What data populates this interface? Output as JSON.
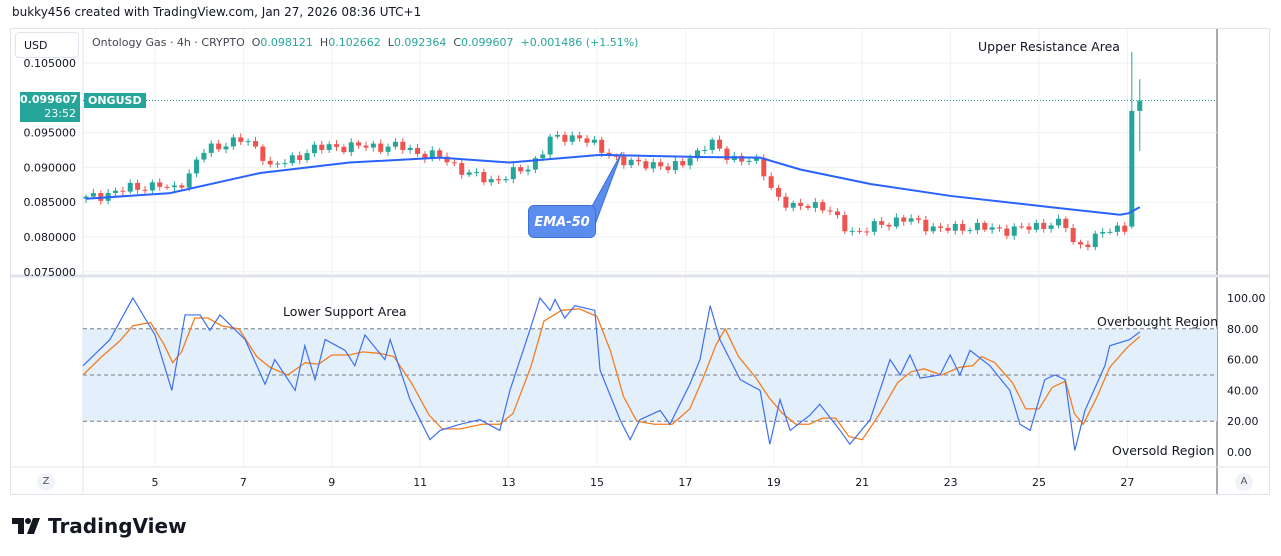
{
  "header": {
    "credit": "bukky456 created with TradingView.com, Jan 27, 2026 08:36 UTC+1"
  },
  "toolbar": {
    "currency": "USD"
  },
  "legend": {
    "symbol": "Ontology Gas · 4h · CRYPTO",
    "open_label": "O",
    "open": "0.098121",
    "high_label": "H",
    "high": "0.102662",
    "low_label": "L",
    "low": "0.092364",
    "close_label": "C",
    "close": "0.099607",
    "change": "+0.001486 (+1.51%)"
  },
  "price_tag": {
    "price": "0.099607",
    "countdown": "23:52",
    "symbol": "ONGUSD"
  },
  "annotations": {
    "upper": "Upper Resistance Area",
    "lower": "Lower Support Area",
    "overbought": "Overbought Region",
    "oversold": "Oversold Region",
    "ema": "EMA-50"
  },
  "buttons": {
    "left": "Z",
    "right": "A"
  },
  "brand": {
    "name": "TradingView"
  },
  "colors": {
    "up": "#26a69a",
    "down": "#ef5350",
    "ema": "#2962ff",
    "rsi": "#3d6ff0",
    "signal": "#f57c1f",
    "band": "#e3f0fc"
  },
  "chart_data": [
    {
      "type": "candlestick",
      "xlabel": "",
      "ylabel": "",
      "x_ticks": [
        "5",
        "7",
        "9",
        "11",
        "13",
        "15",
        "17",
        "19",
        "21",
        "23",
        "25",
        "27"
      ],
      "y_ticks": [
        "0.105000",
        "0.095000",
        "0.090000",
        "0.085000",
        "0.080000",
        "0.075000"
      ],
      "ylim": [
        0.0735,
        0.1075
      ],
      "grid": true,
      "close_path": [
        [
          3.44,
          0.0855
        ],
        [
          4.43,
          0.087
        ],
        [
          5.11,
          0.0875
        ],
        [
          5.34,
          0.0865
        ],
        [
          5.79,
          0.089
        ],
        [
          6.02,
          0.092
        ],
        [
          6.36,
          0.093
        ],
        [
          6.92,
          0.094
        ],
        [
          7.38,
          0.0925
        ],
        [
          7.6,
          0.09
        ],
        [
          8.05,
          0.091
        ],
        [
          8.5,
          0.0925
        ],
        [
          8.96,
          0.093
        ],
        [
          10.54,
          0.093
        ],
        [
          11.0,
          0.092
        ],
        [
          11.45,
          0.0915
        ],
        [
          12.13,
          0.089
        ],
        [
          12.58,
          0.088
        ],
        [
          13.03,
          0.089
        ],
        [
          13.48,
          0.09
        ],
        [
          13.94,
          0.094
        ],
        [
          14.62,
          0.0945
        ],
        [
          15.07,
          0.0925
        ],
        [
          15.41,
          0.0915
        ],
        [
          15.75,
          0.0905
        ],
        [
          16.43,
          0.0905
        ],
        [
          16.65,
          0.0895
        ],
        [
          17.1,
          0.0915
        ],
        [
          17.56,
          0.0935
        ],
        [
          18.0,
          0.0915
        ],
        [
          18.69,
          0.0905
        ],
        [
          19.03,
          0.086
        ],
        [
          19.37,
          0.084
        ],
        [
          19.82,
          0.085
        ],
        [
          20.27,
          0.0835
        ],
        [
          20.72,
          0.081
        ],
        [
          20.95,
          0.0805
        ],
        [
          21.4,
          0.082
        ],
        [
          22.08,
          0.0825
        ],
        [
          22.76,
          0.081
        ],
        [
          23.44,
          0.0815
        ],
        [
          24.12,
          0.081
        ],
        [
          24.8,
          0.0813
        ],
        [
          25.25,
          0.082
        ],
        [
          25.59,
          0.0818
        ],
        [
          25.81,
          0.0785
        ],
        [
          26.15,
          0.0795
        ],
        [
          26.6,
          0.081
        ],
        [
          26.99,
          0.0815
        ]
      ],
      "last_candles": [
        {
          "o": 0.0815,
          "h": 0.1066,
          "l": 0.0812,
          "c": 0.098121
        },
        {
          "o": 0.098121,
          "h": 0.102662,
          "l": 0.092364,
          "c": 0.099607
        }
      ],
      "ema50": {
        "name": "EMA-50",
        "values": [
          [
            3.44,
            0.0855
          ],
          [
            5.34,
            0.0863
          ],
          [
            7.38,
            0.0892
          ],
          [
            9.4,
            0.0907
          ],
          [
            11.45,
            0.0914
          ],
          [
            13.03,
            0.0907
          ],
          [
            15.07,
            0.0918
          ],
          [
            17.33,
            0.0915
          ],
          [
            18.69,
            0.0914
          ],
          [
            19.6,
            0.0897
          ],
          [
            21.2,
            0.0876
          ],
          [
            23.0,
            0.0859
          ],
          [
            25.25,
            0.0843
          ],
          [
            26.83,
            0.0832
          ],
          [
            27.02,
            0.0834
          ],
          [
            27.28,
            0.0843
          ]
        ]
      },
      "last_price": 0.099607
    },
    {
      "type": "line",
      "ylim": [
        0,
        100
      ],
      "y_ticks": [
        "100.00",
        "80.00",
        "60.00",
        "40.00",
        "20.00",
        "0.00"
      ],
      "levels": [
        80,
        50,
        20
      ],
      "series": [
        {
          "values": [
            [
              3.37,
              56
            ],
            [
              3.98,
              73
            ],
            [
              4.5,
              100
            ],
            [
              5.0,
              76
            ],
            [
              5.38,
              40
            ],
            [
              5.68,
              89
            ],
            [
              6.02,
              89
            ],
            [
              6.24,
              79
            ],
            [
              6.47,
              89
            ],
            [
              7.04,
              73
            ],
            [
              7.49,
              44
            ],
            [
              7.71,
              60
            ],
            [
              8.17,
              40
            ],
            [
              8.39,
              69
            ],
            [
              8.62,
              47
            ],
            [
              8.85,
              73
            ],
            [
              9.3,
              66
            ],
            [
              9.52,
              56
            ],
            [
              9.75,
              76
            ],
            [
              10.2,
              60
            ],
            [
              10.32,
              73
            ],
            [
              10.77,
              34
            ],
            [
              11.22,
              8
            ],
            [
              11.45,
              14
            ],
            [
              11.9,
              18
            ],
            [
              12.35,
              21
            ],
            [
              12.8,
              14
            ],
            [
              13.03,
              40
            ],
            [
              13.48,
              79
            ],
            [
              13.71,
              100
            ],
            [
              13.94,
              92
            ],
            [
              14.05,
              99
            ],
            [
              14.27,
              87
            ],
            [
              14.5,
              95
            ],
            [
              14.95,
              92
            ],
            [
              15.07,
              53
            ],
            [
              15.52,
              21
            ],
            [
              15.75,
              8
            ],
            [
              15.97,
              21
            ],
            [
              16.43,
              27
            ],
            [
              16.65,
              18
            ],
            [
              17.1,
              44
            ],
            [
              17.33,
              60
            ],
            [
              17.56,
              95
            ],
            [
              17.78,
              73
            ],
            [
              18.24,
              47
            ],
            [
              18.69,
              40
            ],
            [
              18.91,
              5
            ],
            [
              19.14,
              34
            ],
            [
              19.37,
              14
            ],
            [
              19.82,
              24
            ],
            [
              20.04,
              31
            ],
            [
              20.5,
              14
            ],
            [
              20.72,
              5
            ],
            [
              21.18,
              21
            ],
            [
              21.63,
              60
            ],
            [
              21.86,
              50
            ],
            [
              22.08,
              63
            ],
            [
              22.31,
              48
            ],
            [
              22.76,
              50
            ],
            [
              22.99,
              63
            ],
            [
              23.21,
              50
            ],
            [
              23.44,
              66
            ],
            [
              23.89,
              56
            ],
            [
              24.34,
              40
            ],
            [
              24.57,
              18
            ],
            [
              24.8,
              14
            ],
            [
              25.13,
              47
            ],
            [
              25.36,
              50
            ],
            [
              25.59,
              47
            ],
            [
              25.81,
              1
            ],
            [
              26.04,
              27
            ],
            [
              26.49,
              56
            ],
            [
              26.6,
              69
            ],
            [
              27.05,
              73
            ],
            [
              27.28,
              78
            ]
          ]
        },
        {
          "values": [
            [
              3.37,
              50
            ],
            [
              3.8,
              62
            ],
            [
              4.2,
              72
            ],
            [
              4.5,
              82
            ],
            [
              4.9,
              84
            ],
            [
              5.2,
              70
            ],
            [
              5.4,
              58
            ],
            [
              5.6,
              65
            ],
            [
              5.9,
              87
            ],
            [
              6.2,
              87
            ],
            [
              6.5,
              82
            ],
            [
              6.9,
              80
            ],
            [
              7.3,
              62
            ],
            [
              7.6,
              55
            ],
            [
              8.0,
              50
            ],
            [
              8.4,
              58
            ],
            [
              8.7,
              57
            ],
            [
              9.0,
              63
            ],
            [
              9.4,
              63
            ],
            [
              9.7,
              65
            ],
            [
              10.1,
              64
            ],
            [
              10.4,
              62
            ],
            [
              10.8,
              45
            ],
            [
              11.2,
              24
            ],
            [
              11.5,
              15
            ],
            [
              11.9,
              15
            ],
            [
              12.4,
              18
            ],
            [
              12.8,
              18
            ],
            [
              13.1,
              25
            ],
            [
              13.5,
              55
            ],
            [
              13.8,
              85
            ],
            [
              14.2,
              92
            ],
            [
              14.6,
              93
            ],
            [
              15.0,
              88
            ],
            [
              15.3,
              66
            ],
            [
              15.6,
              36
            ],
            [
              15.9,
              20
            ],
            [
              16.3,
              18
            ],
            [
              16.7,
              18
            ],
            [
              17.1,
              28
            ],
            [
              17.4,
              48
            ],
            [
              17.7,
              70
            ],
            [
              17.9,
              80
            ],
            [
              18.2,
              62
            ],
            [
              18.6,
              48
            ],
            [
              18.9,
              35
            ],
            [
              19.2,
              25
            ],
            [
              19.5,
              18
            ],
            [
              19.8,
              18
            ],
            [
              20.1,
              22
            ],
            [
              20.4,
              22
            ],
            [
              20.7,
              10
            ],
            [
              21.0,
              8
            ],
            [
              21.4,
              25
            ],
            [
              21.8,
              45
            ],
            [
              22.1,
              52
            ],
            [
              22.4,
              54
            ],
            [
              22.8,
              50
            ],
            [
              23.2,
              55
            ],
            [
              23.5,
              56
            ],
            [
              23.7,
              62
            ],
            [
              24.0,
              58
            ],
            [
              24.4,
              45
            ],
            [
              24.7,
              28
            ],
            [
              25.0,
              28
            ],
            [
              25.3,
              42
            ],
            [
              25.6,
              46
            ],
            [
              25.8,
              25
            ],
            [
              26.0,
              18
            ],
            [
              26.3,
              35
            ],
            [
              26.6,
              55
            ],
            [
              27.0,
              68
            ],
            [
              27.28,
              75
            ]
          ]
        }
      ]
    }
  ]
}
